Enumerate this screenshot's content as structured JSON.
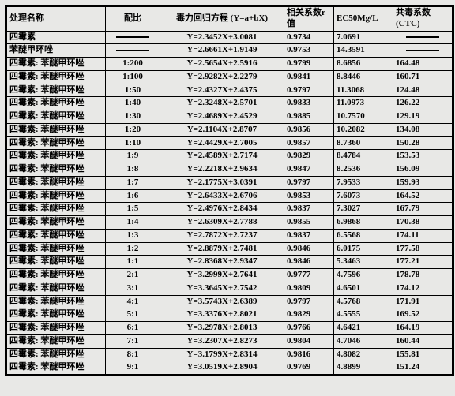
{
  "table": {
    "headers": {
      "h1": "处理名称",
      "h2": "配比",
      "h3": "毒力回归方程 (Y=a+bX)",
      "h4": "相关系数r值",
      "h5": "EC50Mg/L",
      "h6": "共毒系数\n(CTC)"
    },
    "rows": [
      {
        "name": "四霉素",
        "ratio": "—",
        "eq": "Y=2.3452X+3.0081",
        "r": "0.9734",
        "ec": "7.0691",
        "ctc": "—"
      },
      {
        "name": "苯醚甲环唑",
        "ratio": "—",
        "eq": "Y=2.6661X+1.9149",
        "r": "0.9753",
        "ec": "14.3591",
        "ctc": "—"
      },
      {
        "name": "四霉素: 苯醚甲环唑",
        "ratio": "1:200",
        "eq": "Y=2.5654X+2.5916",
        "r": "0.9799",
        "ec": "8.6856",
        "ctc": "164.48"
      },
      {
        "name": "四霉素: 苯醚甲环唑",
        "ratio": "1:100",
        "eq": "Y=2.9282X+2.2279",
        "r": "0.9841",
        "ec": "8.8446",
        "ctc": "160.71"
      },
      {
        "name": "四霉素: 苯醚甲环唑",
        "ratio": "1:50",
        "eq": "Y=2.4327X+2.4375",
        "r": "0.9797",
        "ec": "11.3068",
        "ctc": "124.48"
      },
      {
        "name": "四霉素: 苯醚甲环唑",
        "ratio": "1:40",
        "eq": "Y=2.3248X+2.5701",
        "r": "0.9833",
        "ec": "11.0973",
        "ctc": "126.22"
      },
      {
        "name": "四霉素: 苯醚甲环唑",
        "ratio": "1:30",
        "eq": "Y=2.4689X+2.4529",
        "r": "0.9885",
        "ec": "10.7570",
        "ctc": "129.19"
      },
      {
        "name": "四霉素: 苯醚甲环唑",
        "ratio": "1:20",
        "eq": "Y=2.1104X+2.8707",
        "r": "0.9856",
        "ec": "10.2082",
        "ctc": "134.08"
      },
      {
        "name": "四霉素: 苯醚甲环唑",
        "ratio": "1:10",
        "eq": "Y=2.4429X+2.7005",
        "r": "0.9857",
        "ec": "8.7360",
        "ctc": "150.28"
      },
      {
        "name": "四霉素: 苯醚甲环唑",
        "ratio": "1:9",
        "eq": "Y=2.4589X+2.7174",
        "r": "0.9829",
        "ec": "8.4784",
        "ctc": "153.53"
      },
      {
        "name": "四霉素: 苯醚甲环唑",
        "ratio": "1:8",
        "eq": "Y=2.2218X+2.9634",
        "r": "0.9847",
        "ec": "8.2536",
        "ctc": "156.09"
      },
      {
        "name": "四霉素: 苯醚甲环唑",
        "ratio": "1:7",
        "eq": "Y=2.1775X+3.0391",
        "r": "0.9797",
        "ec": "7.9533",
        "ctc": "159.93"
      },
      {
        "name": "四霉素: 苯醚甲环唑",
        "ratio": "1:6",
        "eq": "Y=2.6433X+2.6706",
        "r": "0.9853",
        "ec": "7.6073",
        "ctc": "164.52"
      },
      {
        "name": "四霉素: 苯醚甲环唑",
        "ratio": "1:5",
        "eq": "Y=2.4976X+2.8434",
        "r": "0.9837",
        "ec": "7.3027",
        "ctc": "167.79"
      },
      {
        "name": "四霉素: 苯醚甲环唑",
        "ratio": "1:4",
        "eq": "Y=2.6309X+2.7788",
        "r": "0.9855",
        "ec": "6.9868",
        "ctc": "170.38"
      },
      {
        "name": "四霉素: 苯醚甲环唑",
        "ratio": "1:3",
        "eq": "Y=2.7872X+2.7237",
        "r": "0.9837",
        "ec": "6.5568",
        "ctc": "174.11"
      },
      {
        "name": "四霉素: 苯醚甲环唑",
        "ratio": "1:2",
        "eq": "Y=2.8879X+2.7481",
        "r": "0.9846",
        "ec": "6.0175",
        "ctc": "177.58"
      },
      {
        "name": "四霉素: 苯醚甲环唑",
        "ratio": "1:1",
        "eq": "Y=2.8368X+2.9347",
        "r": "0.9846",
        "ec": "5.3463",
        "ctc": "177.21"
      },
      {
        "name": "四霉素: 苯醚甲环唑",
        "ratio": "2:1",
        "eq": "Y=3.2999X+2.7641",
        "r": "0.9777",
        "ec": "4.7596",
        "ctc": "178.78"
      },
      {
        "name": "四霉素: 苯醚甲环唑",
        "ratio": "3:1",
        "eq": "Y=3.3645X+2.7542",
        "r": "0.9809",
        "ec": "4.6501",
        "ctc": "174.12"
      },
      {
        "name": "四霉素: 苯醚甲环唑",
        "ratio": "4:1",
        "eq": "Y=3.5743X+2.6389",
        "r": "0.9797",
        "ec": "4.5768",
        "ctc": "171.91"
      },
      {
        "name": "四霉素: 苯醚甲环唑",
        "ratio": "5:1",
        "eq": "Y=3.3376X+2.8021",
        "r": "0.9829",
        "ec": "4.5555",
        "ctc": "169.52"
      },
      {
        "name": "四霉素: 苯醚甲环唑",
        "ratio": "6:1",
        "eq": "Y=3.2978X+2.8013",
        "r": "0.9766",
        "ec": "4.6421",
        "ctc": "164.19"
      },
      {
        "name": "四霉素: 苯醚甲环唑",
        "ratio": "7:1",
        "eq": "Y=3.2307X+2.8273",
        "r": "0.9804",
        "ec": "4.7046",
        "ctc": "160.44"
      },
      {
        "name": "四霉素: 苯醚甲环唑",
        "ratio": "8:1",
        "eq": "Y=3.1799X+2.8314",
        "r": "0.9816",
        "ec": "4.8082",
        "ctc": "155.81"
      },
      {
        "name": "四霉素: 苯醚甲环唑",
        "ratio": "9:1",
        "eq": "Y=3.0519X+2.8904",
        "r": "0.9769",
        "ec": "4.8899",
        "ctc": "151.24"
      }
    ]
  }
}
